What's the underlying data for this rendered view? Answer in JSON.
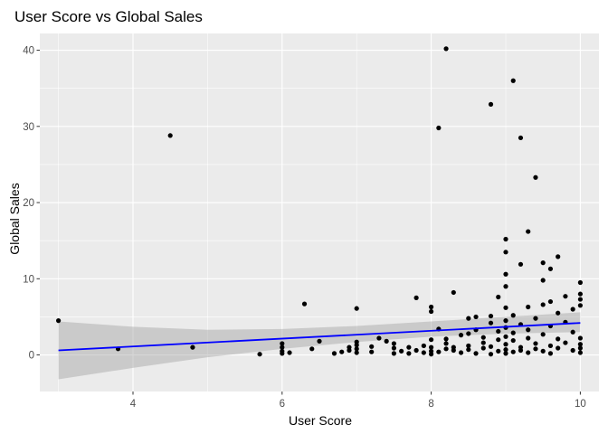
{
  "chart_data": {
    "type": "scatter",
    "title": "User Score vs Global Sales",
    "xlabel": "User Score",
    "ylabel": "Global Sales",
    "xlim": [
      2.75,
      10.25
    ],
    "ylim": [
      -4.8,
      42.2
    ],
    "x_ticks": [
      4,
      6,
      8,
      10
    ],
    "y_ticks": [
      0,
      10,
      20,
      30,
      40
    ],
    "grid": true,
    "colors": {
      "panel": "#ebebeb",
      "grid_major": "#ffffff",
      "point": "#000000",
      "trend_line": "#0000ff",
      "confidence_band": "#999999"
    },
    "trend_line": {
      "x": [
        3,
        10
      ],
      "y": [
        0.6,
        4.2
      ]
    },
    "confidence_band": {
      "x": [
        3,
        4,
        5,
        6,
        7,
        8,
        9,
        10
      ],
      "lower": [
        -3.2,
        -1.7,
        -0.3,
        0.8,
        1.7,
        2.4,
        2.8,
        3.0
      ],
      "upper": [
        4.4,
        3.7,
        3.3,
        3.4,
        3.8,
        4.4,
        5.0,
        5.6
      ]
    },
    "points": [
      {
        "x": 3.0,
        "y": 4.5
      },
      {
        "x": 3.8,
        "y": 0.8
      },
      {
        "x": 4.5,
        "y": 28.8
      },
      {
        "x": 4.8,
        "y": 1.0
      },
      {
        "x": 5.7,
        "y": 0.1
      },
      {
        "x": 6.0,
        "y": 0.2
      },
      {
        "x": 6.0,
        "y": 0.5
      },
      {
        "x": 6.0,
        "y": 1.0
      },
      {
        "x": 6.0,
        "y": 1.5
      },
      {
        "x": 6.1,
        "y": 0.3
      },
      {
        "x": 6.3,
        "y": 6.7
      },
      {
        "x": 6.4,
        "y": 0.8
      },
      {
        "x": 6.5,
        "y": 1.8
      },
      {
        "x": 6.7,
        "y": 0.2
      },
      {
        "x": 6.8,
        "y": 0.4
      },
      {
        "x": 6.9,
        "y": 0.6
      },
      {
        "x": 6.9,
        "y": 1.0
      },
      {
        "x": 7.0,
        "y": 6.1
      },
      {
        "x": 7.0,
        "y": 0.3
      },
      {
        "x": 7.0,
        "y": 0.8
      },
      {
        "x": 7.0,
        "y": 1.3
      },
      {
        "x": 7.0,
        "y": 1.7
      },
      {
        "x": 7.2,
        "y": 0.4
      },
      {
        "x": 7.2,
        "y": 1.1
      },
      {
        "x": 7.3,
        "y": 2.2
      },
      {
        "x": 7.4,
        "y": 1.8
      },
      {
        "x": 7.5,
        "y": 0.2
      },
      {
        "x": 7.5,
        "y": 0.9
      },
      {
        "x": 7.5,
        "y": 1.5
      },
      {
        "x": 7.6,
        "y": 0.5
      },
      {
        "x": 7.7,
        "y": 0.2
      },
      {
        "x": 7.7,
        "y": 1.0
      },
      {
        "x": 7.8,
        "y": 7.5
      },
      {
        "x": 7.8,
        "y": 0.6
      },
      {
        "x": 7.9,
        "y": 0.3
      },
      {
        "x": 7.9,
        "y": 1.2
      },
      {
        "x": 8.0,
        "y": 0.1
      },
      {
        "x": 8.0,
        "y": 0.5
      },
      {
        "x": 8.0,
        "y": 1.0
      },
      {
        "x": 8.0,
        "y": 2.0
      },
      {
        "x": 8.0,
        "y": 5.7
      },
      {
        "x": 8.0,
        "y": 6.3
      },
      {
        "x": 8.1,
        "y": 29.8
      },
      {
        "x": 8.1,
        "y": 3.4
      },
      {
        "x": 8.1,
        "y": 0.4
      },
      {
        "x": 8.2,
        "y": 40.2
      },
      {
        "x": 8.2,
        "y": 1.5
      },
      {
        "x": 8.2,
        "y": 0.8
      },
      {
        "x": 8.2,
        "y": 2.1
      },
      {
        "x": 8.3,
        "y": 8.2
      },
      {
        "x": 8.3,
        "y": 0.6
      },
      {
        "x": 8.3,
        "y": 1.0
      },
      {
        "x": 8.4,
        "y": 2.6
      },
      {
        "x": 8.4,
        "y": 0.3
      },
      {
        "x": 8.5,
        "y": 4.8
      },
      {
        "x": 8.5,
        "y": 1.2
      },
      {
        "x": 8.5,
        "y": 0.7
      },
      {
        "x": 8.5,
        "y": 2.8
      },
      {
        "x": 8.6,
        "y": 0.2
      },
      {
        "x": 8.6,
        "y": 5.0
      },
      {
        "x": 8.6,
        "y": 3.3
      },
      {
        "x": 8.7,
        "y": 1.6
      },
      {
        "x": 8.7,
        "y": 0.9
      },
      {
        "x": 8.7,
        "y": 2.3
      },
      {
        "x": 8.8,
        "y": 32.9
      },
      {
        "x": 8.8,
        "y": 0.1
      },
      {
        "x": 8.8,
        "y": 4.2
      },
      {
        "x": 8.8,
        "y": 1.1
      },
      {
        "x": 8.8,
        "y": 5.1
      },
      {
        "x": 8.9,
        "y": 0.5
      },
      {
        "x": 8.9,
        "y": 2.0
      },
      {
        "x": 8.9,
        "y": 7.6
      },
      {
        "x": 8.9,
        "y": 3.1
      },
      {
        "x": 9.0,
        "y": 15.2
      },
      {
        "x": 9.0,
        "y": 13.5
      },
      {
        "x": 9.0,
        "y": 10.6
      },
      {
        "x": 9.0,
        "y": 9.0
      },
      {
        "x": 9.0,
        "y": 6.2
      },
      {
        "x": 9.0,
        "y": 4.5
      },
      {
        "x": 9.0,
        "y": 3.6
      },
      {
        "x": 9.0,
        "y": 2.4
      },
      {
        "x": 9.0,
        "y": 1.4
      },
      {
        "x": 9.0,
        "y": 0.7
      },
      {
        "x": 9.0,
        "y": 0.2
      },
      {
        "x": 9.1,
        "y": 36.0
      },
      {
        "x": 9.1,
        "y": 5.2
      },
      {
        "x": 9.1,
        "y": 1.9
      },
      {
        "x": 9.1,
        "y": 0.4
      },
      {
        "x": 9.1,
        "y": 2.9
      },
      {
        "x": 9.2,
        "y": 28.5
      },
      {
        "x": 9.2,
        "y": 11.9
      },
      {
        "x": 9.2,
        "y": 4.0
      },
      {
        "x": 9.2,
        "y": 1.0
      },
      {
        "x": 9.2,
        "y": 0.6
      },
      {
        "x": 9.3,
        "y": 16.2
      },
      {
        "x": 9.3,
        "y": 3.3
      },
      {
        "x": 9.3,
        "y": 2.2
      },
      {
        "x": 9.3,
        "y": 0.3
      },
      {
        "x": 9.3,
        "y": 6.3
      },
      {
        "x": 9.4,
        "y": 23.3
      },
      {
        "x": 9.4,
        "y": 4.8
      },
      {
        "x": 9.4,
        "y": 1.5
      },
      {
        "x": 9.4,
        "y": 0.8
      },
      {
        "x": 9.5,
        "y": 12.1
      },
      {
        "x": 9.5,
        "y": 9.8
      },
      {
        "x": 9.5,
        "y": 6.6
      },
      {
        "x": 9.5,
        "y": 2.7
      },
      {
        "x": 9.5,
        "y": 0.5
      },
      {
        "x": 9.6,
        "y": 11.3
      },
      {
        "x": 9.6,
        "y": 7.0
      },
      {
        "x": 9.6,
        "y": 3.8
      },
      {
        "x": 9.6,
        "y": 1.2
      },
      {
        "x": 9.6,
        "y": 0.2
      },
      {
        "x": 9.7,
        "y": 12.9
      },
      {
        "x": 9.7,
        "y": 5.5
      },
      {
        "x": 9.7,
        "y": 2.1
      },
      {
        "x": 9.7,
        "y": 0.9
      },
      {
        "x": 9.8,
        "y": 7.7
      },
      {
        "x": 9.8,
        "y": 4.3
      },
      {
        "x": 9.8,
        "y": 1.6
      },
      {
        "x": 9.9,
        "y": 6.0
      },
      {
        "x": 9.9,
        "y": 3.0
      },
      {
        "x": 9.9,
        "y": 0.6
      },
      {
        "x": 10.0,
        "y": 9.5
      },
      {
        "x": 10.0,
        "y": 8.0
      },
      {
        "x": 10.0,
        "y": 7.3
      },
      {
        "x": 10.0,
        "y": 6.5
      },
      {
        "x": 10.0,
        "y": 2.2
      },
      {
        "x": 10.0,
        "y": 1.4
      },
      {
        "x": 10.0,
        "y": 0.9
      },
      {
        "x": 10.0,
        "y": 0.3
      }
    ]
  }
}
